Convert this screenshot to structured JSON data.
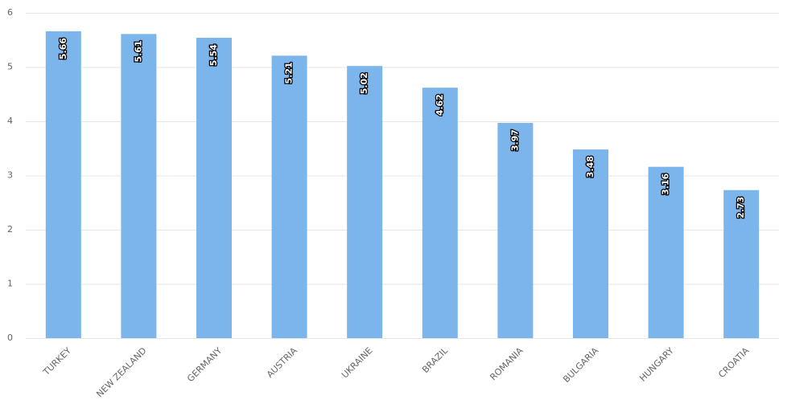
{
  "chart_data": {
    "type": "bar",
    "categories": [
      "TURKEY",
      "NEW ZEALAND",
      "GERMANY",
      "AUSTRIA",
      "UKRAINE",
      "BRAZIL",
      "ROMANIA",
      "BULGARIA",
      "HUNGARY",
      "CROATIA"
    ],
    "values": [
      5.66,
      5.61,
      5.54,
      5.21,
      5.02,
      4.62,
      3.97,
      3.48,
      3.16,
      2.73
    ],
    "color": "#7cb5ec",
    "ylim": [
      0,
      6
    ],
    "yticks": [
      0,
      1,
      2,
      3,
      4,
      5,
      6
    ],
    "grid": true
  }
}
